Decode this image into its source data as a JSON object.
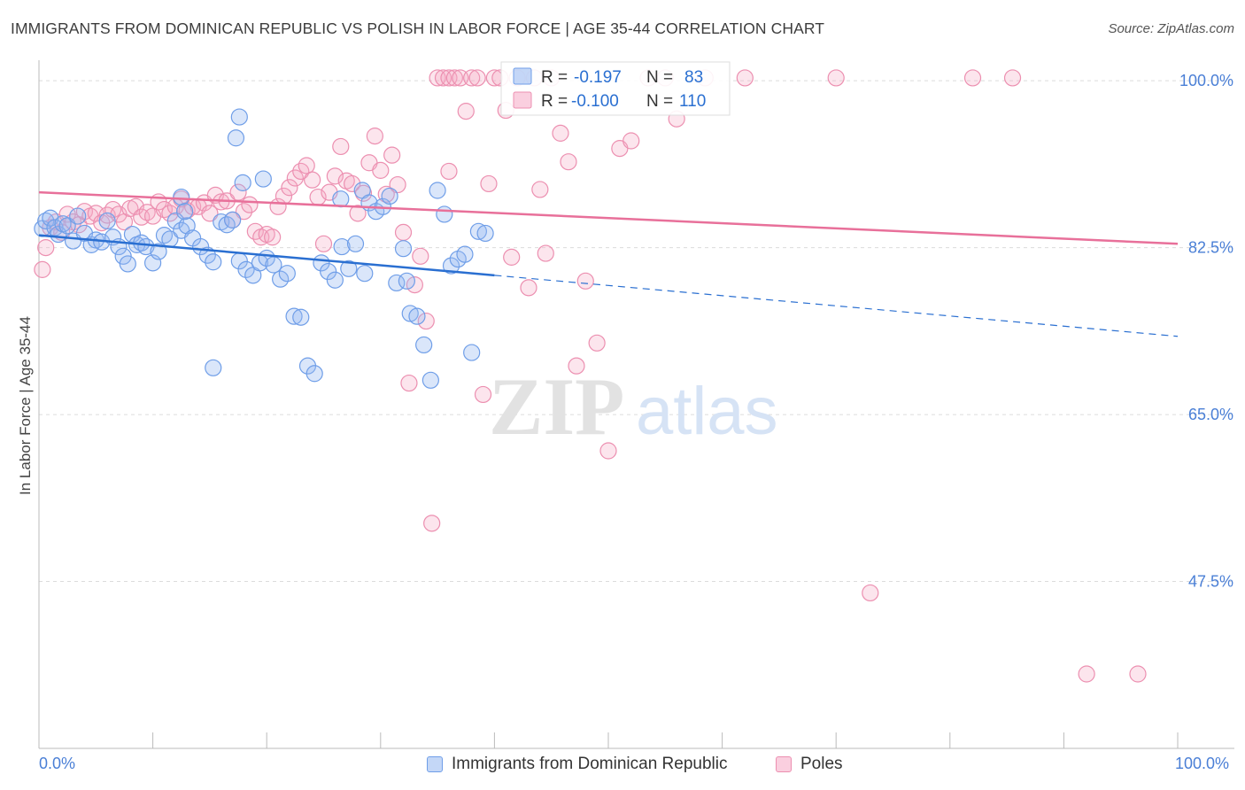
{
  "title": "IMMIGRANTS FROM DOMINICAN REPUBLIC VS POLISH IN LABOR FORCE | AGE 35-44 CORRELATION CHART",
  "source": "Source: ZipAtlas.com",
  "watermark": {
    "zip": "ZIP",
    "atlas": "atlas"
  },
  "colors": {
    "blue": "#6f9ee8",
    "blue_fill": "rgba(148,183,240,0.35)",
    "blue_line": "#2a6fd1",
    "pink": "#ec8fb0",
    "pink_fill": "rgba(245,168,196,0.30)",
    "pink_line": "#e8709a",
    "axis_label": "#4a7fd6",
    "grid": "#d9d9d9"
  },
  "legend": {
    "rows": [
      {
        "r_label": "R =",
        "r_value": "-0.197",
        "n_label": "N =",
        "n_value": "83"
      },
      {
        "r_label": "R =",
        "r_value": "-0.100",
        "n_label": "N =",
        "n_value": "110"
      }
    ]
  },
  "bottom_legend": {
    "series1": "Immigrants from Dominican Republic",
    "series2": "Poles"
  },
  "chart_data": {
    "type": "scatter",
    "title": "IMMIGRANTS FROM DOMINICAN REPUBLIC VS POLISH IN LABOR FORCE | AGE 35-44 CORRELATION CHART",
    "xlabel": "",
    "ylabel": "In Labor Force | Age 35-44",
    "xlim": [
      0,
      100
    ],
    "ylim": [
      30,
      101.5
    ],
    "x_tick_labels": [
      "0.0%",
      "100.0%"
    ],
    "y_ticks": [
      47.5,
      65.0,
      82.5,
      100.0
    ],
    "y_tick_labels": [
      "47.5%",
      "65.0%",
      "82.5%",
      "100.0%"
    ],
    "grid": true,
    "legend_placement": "top-center",
    "series": [
      {
        "name": "Immigrants from Dominican Republic",
        "color": "#6f9ee8",
        "r": -0.197,
        "n": 83,
        "trend": {
          "x0": 0,
          "y0": 83.8,
          "x1": 40,
          "y1": 79.6,
          "dashed_to_x": 100,
          "dashed_to_y": 73.2
        },
        "points": [
          [
            0.3,
            84.5
          ],
          [
            0.6,
            85.3
          ],
          [
            1.0,
            85.6
          ],
          [
            1.4,
            84.6
          ],
          [
            1.7,
            83.9
          ],
          [
            2.1,
            85.0
          ],
          [
            2.5,
            84.8
          ],
          [
            3.0,
            83.2
          ],
          [
            3.4,
            85.8
          ],
          [
            4.0,
            84.0
          ],
          [
            4.6,
            82.8
          ],
          [
            5.0,
            83.3
          ],
          [
            5.5,
            83.1
          ],
          [
            6.0,
            85.3
          ],
          [
            6.5,
            83.6
          ],
          [
            7.0,
            82.6
          ],
          [
            7.4,
            81.6
          ],
          [
            7.8,
            80.8
          ],
          [
            8.2,
            83.9
          ],
          [
            8.6,
            82.8
          ],
          [
            9.0,
            83.0
          ],
          [
            9.4,
            82.6
          ],
          [
            10.0,
            80.9
          ],
          [
            10.5,
            82.1
          ],
          [
            11.0,
            83.8
          ],
          [
            11.5,
            83.4
          ],
          [
            12.0,
            85.3
          ],
          [
            12.5,
            84.3
          ],
          [
            13.0,
            84.8
          ],
          [
            13.5,
            83.5
          ],
          [
            14.2,
            82.6
          ],
          [
            14.8,
            81.7
          ],
          [
            15.3,
            81.0
          ],
          [
            16.0,
            85.2
          ],
          [
            16.5,
            84.9
          ],
          [
            17.0,
            85.4
          ],
          [
            17.6,
            81.1
          ],
          [
            18.2,
            80.2
          ],
          [
            18.8,
            79.6
          ],
          [
            19.4,
            80.9
          ],
          [
            20.0,
            81.4
          ],
          [
            20.6,
            80.7
          ],
          [
            21.2,
            79.2
          ],
          [
            21.8,
            79.8
          ],
          [
            22.4,
            75.3
          ],
          [
            23.0,
            75.2
          ],
          [
            23.6,
            70.1
          ],
          [
            24.2,
            69.3
          ],
          [
            24.8,
            80.9
          ],
          [
            25.4,
            80.0
          ],
          [
            26.0,
            79.1
          ],
          [
            26.6,
            82.6
          ],
          [
            27.2,
            80.3
          ],
          [
            27.8,
            82.9
          ],
          [
            28.4,
            88.5
          ],
          [
            29.0,
            87.2
          ],
          [
            29.6,
            86.3
          ],
          [
            30.2,
            86.8
          ],
          [
            30.8,
            87.9
          ],
          [
            31.4,
            78.8
          ],
          [
            32.0,
            82.4
          ],
          [
            32.6,
            75.6
          ],
          [
            33.2,
            75.3
          ],
          [
            33.8,
            72.3
          ],
          [
            34.4,
            68.6
          ],
          [
            35.0,
            88.5
          ],
          [
            35.6,
            86.0
          ],
          [
            36.2,
            80.6
          ],
          [
            36.8,
            81.3
          ],
          [
            37.4,
            81.8
          ],
          [
            38.0,
            71.5
          ],
          [
            38.6,
            84.2
          ],
          [
            39.2,
            84.0
          ],
          [
            17.3,
            94.0
          ],
          [
            17.6,
            96.2
          ],
          [
            17.9,
            89.3
          ],
          [
            12.5,
            87.8
          ],
          [
            12.8,
            86.3
          ],
          [
            19.7,
            89.7
          ],
          [
            26.5,
            87.6
          ],
          [
            15.3,
            69.9
          ],
          [
            32.3,
            79.0
          ],
          [
            28.6,
            79.8
          ]
        ]
      },
      {
        "name": "Poles",
        "color": "#ec8fb0",
        "r": -0.1,
        "n": 110,
        "trend": {
          "x0": 0,
          "y0": 88.3,
          "x1": 100,
          "y1": 82.9
        },
        "points": [
          [
            0.3,
            80.2
          ],
          [
            0.6,
            82.5
          ],
          [
            1.0,
            84.6
          ],
          [
            1.5,
            85.2
          ],
          [
            2.0,
            84.1
          ],
          [
            2.5,
            86.0
          ],
          [
            3.0,
            85.2
          ],
          [
            3.5,
            84.9
          ],
          [
            4.0,
            86.3
          ],
          [
            4.5,
            85.8
          ],
          [
            5.0,
            86.1
          ],
          [
            5.5,
            85.1
          ],
          [
            6.0,
            85.9
          ],
          [
            6.5,
            86.5
          ],
          [
            7.0,
            86.0
          ],
          [
            7.5,
            85.2
          ],
          [
            8.0,
            86.6
          ],
          [
            8.5,
            86.8
          ],
          [
            9.0,
            85.7
          ],
          [
            9.5,
            86.2
          ],
          [
            10.0,
            85.8
          ],
          [
            10.5,
            87.3
          ],
          [
            11.0,
            86.5
          ],
          [
            11.5,
            86.1
          ],
          [
            12.0,
            86.8
          ],
          [
            12.5,
            87.6
          ],
          [
            13.0,
            86.4
          ],
          [
            13.5,
            86.8
          ],
          [
            14.0,
            86.8
          ],
          [
            14.5,
            87.2
          ],
          [
            15.0,
            86.1
          ],
          [
            15.5,
            88.0
          ],
          [
            16.0,
            87.3
          ],
          [
            16.5,
            87.4
          ],
          [
            17.0,
            85.4
          ],
          [
            17.5,
            88.3
          ],
          [
            18.0,
            86.3
          ],
          [
            18.5,
            87.0
          ],
          [
            19.0,
            84.2
          ],
          [
            19.5,
            83.6
          ],
          [
            20.0,
            83.9
          ],
          [
            20.5,
            83.6
          ],
          [
            21.0,
            86.8
          ],
          [
            21.5,
            87.9
          ],
          [
            22.0,
            88.8
          ],
          [
            22.5,
            89.8
          ],
          [
            23.0,
            90.5
          ],
          [
            23.5,
            91.1
          ],
          [
            24.0,
            89.6
          ],
          [
            24.5,
            87.8
          ],
          [
            25.0,
            82.9
          ],
          [
            25.5,
            88.3
          ],
          [
            26.0,
            90.0
          ],
          [
            26.5,
            93.1
          ],
          [
            27.0,
            89.5
          ],
          [
            27.5,
            89.2
          ],
          [
            28.0,
            86.1
          ],
          [
            28.5,
            88.2
          ],
          [
            29.0,
            91.4
          ],
          [
            29.5,
            94.2
          ],
          [
            30.0,
            90.6
          ],
          [
            30.5,
            88.1
          ],
          [
            31.0,
            92.2
          ],
          [
            31.5,
            89.1
          ],
          [
            32.0,
            84.1
          ],
          [
            32.5,
            68.3
          ],
          [
            33.0,
            78.6
          ],
          [
            33.5,
            81.6
          ],
          [
            34.0,
            74.8
          ],
          [
            34.5,
            53.6
          ],
          [
            35.0,
            100.3
          ],
          [
            35.5,
            100.3
          ],
          [
            36.0,
            100.3
          ],
          [
            36.5,
            100.3
          ],
          [
            37.0,
            100.3
          ],
          [
            37.5,
            96.8
          ],
          [
            38.0,
            100.3
          ],
          [
            38.5,
            100.3
          ],
          [
            39.0,
            67.1
          ],
          [
            39.5,
            89.2
          ],
          [
            40.0,
            100.3
          ],
          [
            40.5,
            100.3
          ],
          [
            41.0,
            96.9
          ],
          [
            42.0,
            100.3
          ],
          [
            43.5,
            100.3
          ],
          [
            44.5,
            81.9
          ],
          [
            45.0,
            100.3
          ],
          [
            45.8,
            94.5
          ],
          [
            46.5,
            91.5
          ],
          [
            47.2,
            70.1
          ],
          [
            48.0,
            79.0
          ],
          [
            49.0,
            72.5
          ],
          [
            50.0,
            61.2
          ],
          [
            51.0,
            92.9
          ],
          [
            52.0,
            93.7
          ],
          [
            53.5,
            100.3
          ],
          [
            55.0,
            100.3
          ],
          [
            56.0,
            96.0
          ],
          [
            58.5,
            100.3
          ],
          [
            62.0,
            100.3
          ],
          [
            70.0,
            100.3
          ],
          [
            73.0,
            46.3
          ],
          [
            82.0,
            100.3
          ],
          [
            85.5,
            100.3
          ],
          [
            92.0,
            37.8
          ],
          [
            96.5,
            37.8
          ],
          [
            44.0,
            88.6
          ],
          [
            36.0,
            90.5
          ],
          [
            41.5,
            81.5
          ],
          [
            43.0,
            78.3
          ]
        ]
      }
    ]
  }
}
